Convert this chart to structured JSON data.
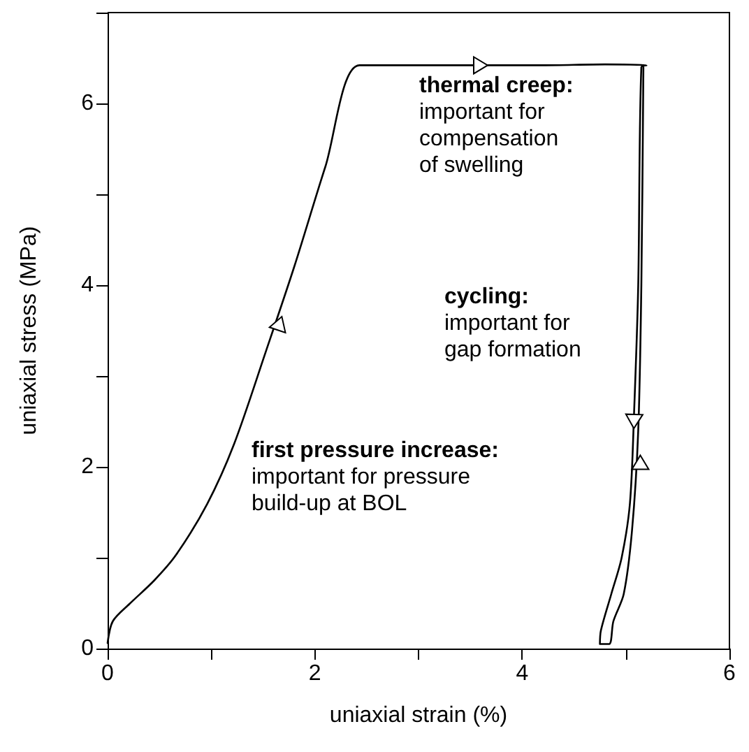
{
  "chart_data": {
    "type": "line",
    "xlabel": "uniaxial strain (%)",
    "ylabel": "uniaxial stress (MPa)",
    "xlim": [
      0,
      6
    ],
    "ylim": [
      0,
      7
    ],
    "xticks": [
      0,
      {
        "value": 1,
        "label": null
      },
      2,
      {
        "value": 3,
        "label": null
      },
      4,
      {
        "value": 5,
        "label": null
      },
      6
    ],
    "yticks": [
      0,
      {
        "value": 1,
        "label": null
      },
      2,
      {
        "value": 3,
        "label": null
      },
      4,
      {
        "value": 5,
        "label": null
      },
      6,
      {
        "value": 7,
        "label": null
      }
    ],
    "grid": false,
    "marker": "none",
    "line_style": "solid",
    "series": [
      {
        "color": "#000000",
        "x": [
          0,
          0.05,
          0.21,
          0.45,
          0.66,
          0.96,
          1.22,
          1.53,
          1.8,
          2.1,
          2.43,
          3.0,
          3.6,
          4.2,
          4.8,
          5.2,
          5.15,
          5.12,
          5.08,
          5.04,
          4.96,
          4.86,
          4.76,
          4.75,
          4.84,
          4.88,
          4.98,
          5.06,
          5.12,
          5.15,
          5.17
        ],
        "values": [
          0.06,
          0.3,
          0.49,
          0.75,
          1.03,
          1.59,
          2.25,
          3.28,
          4.2,
          5.3,
          6.42,
          6.42,
          6.42,
          6.42,
          6.43,
          6.42,
          6.4,
          4.0,
          2.6,
          1.6,
          1.0,
          0.6,
          0.2,
          0.05,
          0.05,
          0.3,
          0.6,
          1.3,
          2.4,
          4.0,
          6.42
        ]
      }
    ],
    "annotations": [
      "thermal creep:\nimportant for\ncompensation\nof swelling",
      "cycling:\nimportant for\ngap formation",
      "first pressure increase:\nimportant for pressure\nbuild-up at BOL"
    ]
  }
}
